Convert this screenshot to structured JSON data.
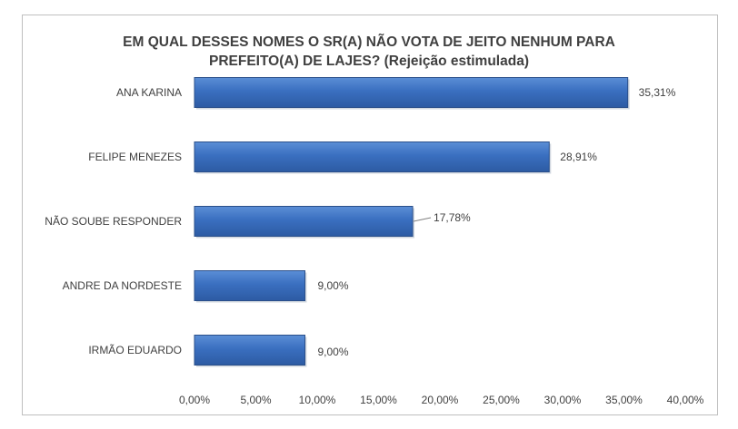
{
  "chart_data": {
    "type": "bar",
    "orientation": "horizontal",
    "title_line1": "EM QUAL DESSES NOMES O SR(A) NÃO VOTA DE JEITO NENHUM PARA",
    "title_line2": "PREFEITO(A) DE LAJES? (Rejeição estimulada)",
    "categories": [
      "ANA KARINA",
      "FELIPE MENEZES",
      "NÃO SOUBE RESPONDER",
      "ANDRE DA NORDESTE",
      "IRMÃO EDUARDO"
    ],
    "values": [
      35.31,
      28.91,
      17.78,
      9.0,
      9.0
    ],
    "data_labels": [
      "35,31%",
      "28,91%",
      "17,78%",
      "9,00%",
      "9,00%"
    ],
    "xlim": [
      0,
      40
    ],
    "ticks": [
      0,
      5,
      10,
      15,
      20,
      25,
      30,
      35,
      40
    ],
    "tick_labels": [
      "0,00%",
      "5,00%",
      "10,00%",
      "15,00%",
      "20,00%",
      "25,00%",
      "30,00%",
      "35,00%",
      "40,00%"
    ],
    "bar_color": "#3a6fc0",
    "bar_edge_color": "#2a4f8a",
    "grid": false,
    "legend": "none"
  }
}
